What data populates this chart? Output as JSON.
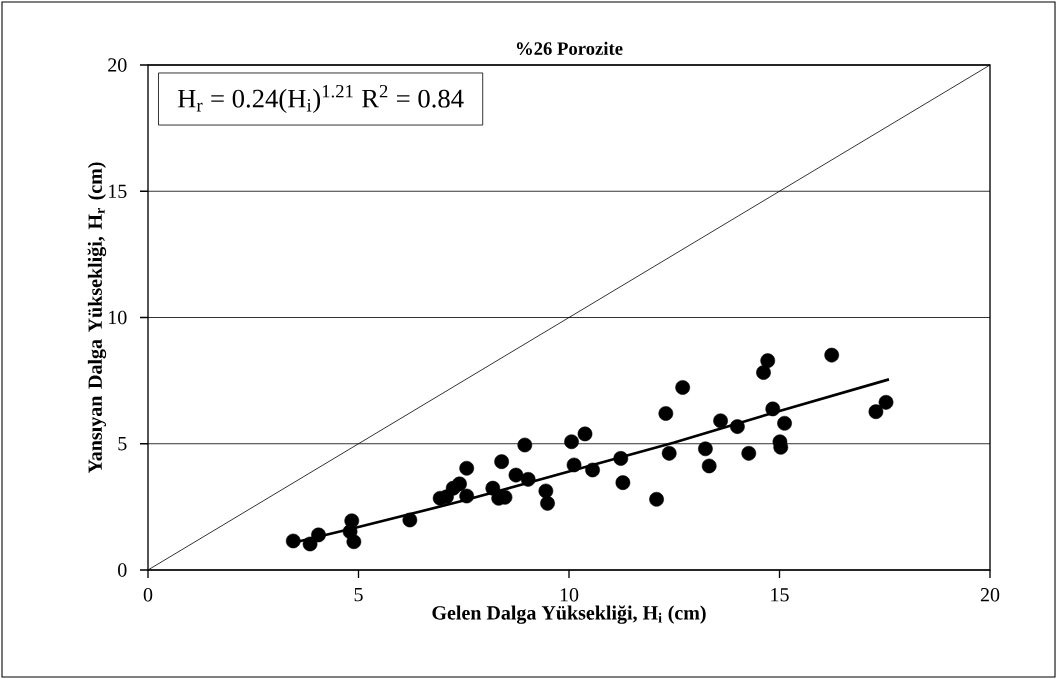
{
  "chart_data": {
    "type": "scatter",
    "title": "%26 Porozite",
    "xlabel": "Gelen Dalga Yüksekliği, H$_{i}$ (cm)",
    "ylabel": "Yansıyan Dalga Yüksekliği, H$_{r}$ (cm)",
    "annotations": [
      "H$_{r}$ = 0.24(H$_{i}$)$^{1.21}$   R$^{2}$ = 0.84"
    ],
    "xlim": [
      0,
      20
    ],
    "ylim": [
      0,
      20
    ],
    "xticks": [
      0,
      5,
      10,
      15,
      20
    ],
    "yticks": [
      0,
      5,
      10,
      15,
      20
    ],
    "grid": "y",
    "marker": "circle",
    "series": [
      {
        "color": "#000000",
        "x": [
          3.45,
          3.85,
          4.05,
          4.84,
          4.8,
          4.89,
          6.22,
          6.94,
          7.09,
          7.25,
          7.4,
          7.57,
          7.57,
          8.19,
          8.28,
          8.33,
          8.48,
          8.4,
          8.74,
          8.95,
          9.03,
          9.45,
          9.49,
          10.06,
          10.38,
          10.12,
          10.56,
          11.23,
          11.28,
          12.08,
          12.3,
          12.7,
          12.38,
          13.24,
          13.33,
          13.6,
          14.0,
          14.27,
          14.62,
          14.72,
          14.84,
          15.12,
          15.01,
          15.03,
          16.24,
          17.29,
          17.53
        ],
        "values": [
          1.15,
          1.03,
          1.39,
          1.95,
          1.52,
          1.12,
          1.98,
          2.84,
          2.9,
          3.24,
          3.41,
          2.93,
          4.03,
          3.24,
          null,
          2.84,
          2.88,
          4.29,
          3.76,
          4.95,
          3.59,
          3.13,
          2.64,
          5.08,
          5.39,
          4.16,
          3.96,
          4.42,
          3.46,
          2.8,
          6.2,
          7.23,
          4.62,
          4.8,
          4.12,
          5.91,
          5.68,
          4.62,
          7.82,
          8.29,
          6.38,
          5.81,
          5.08,
          4.86,
          8.51,
          6.27,
          6.64
        ]
      },
      {
        "type": "line",
        "marker": "none",
        "color": "#000000",
        "x": [
          3.5,
          5,
          7.5,
          10,
          12.5,
          15,
          17.6
        ],
        "values": [
          1.1,
          1.7,
          2.75,
          3.9,
          5.05,
          6.3,
          7.55
        ]
      },
      {
        "type": "line",
        "marker": "none",
        "color": "#000000",
        "x": [
          0,
          20
        ],
        "values": [
          0,
          20
        ]
      }
    ]
  }
}
